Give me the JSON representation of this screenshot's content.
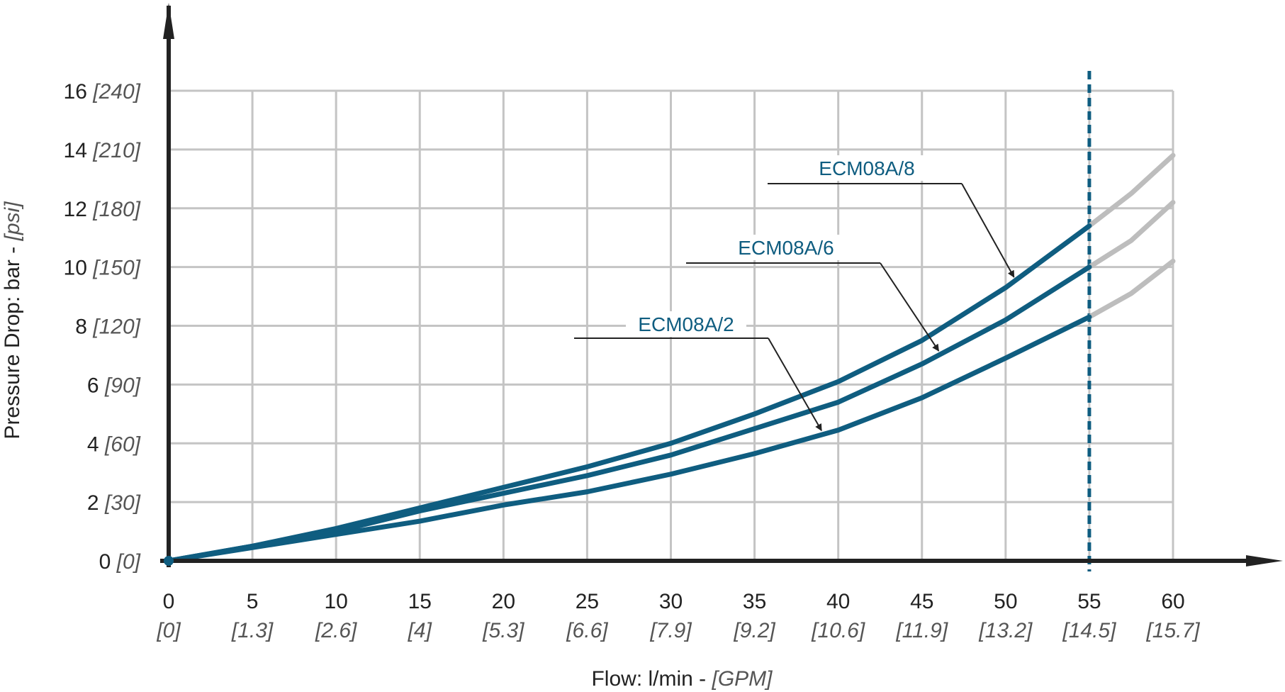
{
  "chart_data": {
    "type": "line",
    "xlabel": "Flow: l/min -",
    "xlabel_unit": "[GPM]",
    "ylabel": "Pressure Drop: bar -",
    "ylabel_unit": "[psi]",
    "xlim": [
      0,
      60
    ],
    "ylim": [
      0,
      16
    ],
    "grid": true,
    "x_ticks": [
      {
        "value": 0,
        "label": "0",
        "sub": "[0]"
      },
      {
        "value": 5,
        "label": "5",
        "sub": "[1.3]"
      },
      {
        "value": 10,
        "label": "10",
        "sub": "[2.6]"
      },
      {
        "value": 15,
        "label": "15",
        "sub": "[4]"
      },
      {
        "value": 20,
        "label": "20",
        "sub": "[5.3]"
      },
      {
        "value": 25,
        "label": "25",
        "sub": "[6.6]"
      },
      {
        "value": 30,
        "label": "30",
        "sub": "[7.9]"
      },
      {
        "value": 35,
        "label": "35",
        "sub": "[9.2]"
      },
      {
        "value": 40,
        "label": "40",
        "sub": "[10.6]"
      },
      {
        "value": 45,
        "label": "45",
        "sub": "[11.9]"
      },
      {
        "value": 50,
        "label": "50",
        "sub": "[13.2]"
      },
      {
        "value": 55,
        "label": "55",
        "sub": "[14.5]"
      },
      {
        "value": 60,
        "label": "60",
        "sub": "[15.7]"
      }
    ],
    "y_ticks": [
      {
        "value": 0,
        "label": "0",
        "sub": "[0]"
      },
      {
        "value": 2,
        "label": "2",
        "sub": "[30]"
      },
      {
        "value": 4,
        "label": "4",
        "sub": "[60]"
      },
      {
        "value": 6,
        "label": "6",
        "sub": "[90]"
      },
      {
        "value": 8,
        "label": "8",
        "sub": "[120]"
      },
      {
        "value": 10,
        "label": "10",
        "sub": "[150]"
      },
      {
        "value": 12,
        "label": "12",
        "sub": "[180]"
      },
      {
        "value": 14,
        "label": "14",
        "sub": "[210]"
      },
      {
        "value": 16,
        "label": "16",
        "sub": "[240]"
      }
    ],
    "rated_flow_line": {
      "x": 55,
      "style": "dashed",
      "color": "#0f5d80"
    },
    "series": [
      {
        "name": "ECM08A/8",
        "color": "#0f5d80",
        "extension_color": "#bdbdbd",
        "x": [
          0,
          5,
          10,
          15,
          20,
          25,
          30,
          35,
          40,
          45,
          50,
          55
        ],
        "y": [
          0,
          0.5,
          1.1,
          1.8,
          2.5,
          3.2,
          4.0,
          5.0,
          6.1,
          7.5,
          9.3,
          11.4
        ],
        "x_extension": [
          55,
          57.5,
          60
        ],
        "y_extension": [
          11.4,
          12.5,
          13.8
        ]
      },
      {
        "name": "ECM08A/6",
        "color": "#0f5d80",
        "extension_color": "#bdbdbd",
        "x": [
          0,
          5,
          10,
          15,
          20,
          25,
          30,
          35,
          40,
          45,
          50,
          55
        ],
        "y": [
          0,
          0.5,
          1.0,
          1.7,
          2.3,
          2.9,
          3.6,
          4.5,
          5.4,
          6.7,
          8.2,
          10.0
        ],
        "x_extension": [
          55,
          57.5,
          60
        ],
        "y_extension": [
          10.0,
          10.9,
          12.2
        ]
      },
      {
        "name": "ECM08A/2",
        "color": "#0f5d80",
        "extension_color": "#bdbdbd",
        "x": [
          0,
          5,
          10,
          15,
          20,
          25,
          30,
          35,
          40,
          45,
          50,
          55
        ],
        "y": [
          0,
          0.45,
          0.9,
          1.35,
          1.9,
          2.35,
          2.95,
          3.65,
          4.45,
          5.55,
          6.9,
          8.3
        ],
        "x_extension": [
          55,
          57.5,
          60
        ],
        "y_extension": [
          8.3,
          9.1,
          10.2
        ]
      }
    ],
    "annotations": [
      {
        "text": "ECM08A/8",
        "series": 0,
        "point_x": 50.5
      },
      {
        "text": "ECM08A/6",
        "series": 1,
        "point_x": 46
      },
      {
        "text": "ECM08A/2",
        "series": 2,
        "point_x": 39
      }
    ]
  }
}
